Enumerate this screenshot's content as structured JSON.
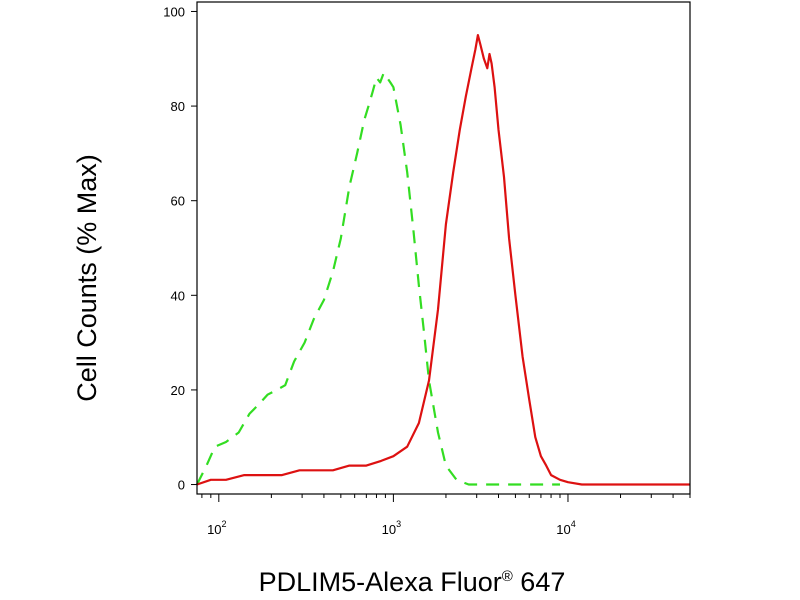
{
  "chart_data": {
    "type": "line",
    "title": "",
    "xlabel": "PDLIM5-Alexa Fluor",
    "xlabel_mark": "®",
    "xlabel_suffix": " 647",
    "ylabel": "Cell Counts (% Max)",
    "x_scale": "log",
    "xlim": [
      75,
      50000
    ],
    "ylim": [
      -2,
      102
    ],
    "grid": false,
    "y_ticks": [
      {
        "value": 0,
        "label": "0"
      },
      {
        "value": 20,
        "label": "20"
      },
      {
        "value": 40,
        "label": "40"
      },
      {
        "value": 60,
        "label": "60"
      },
      {
        "value": 80,
        "label": "80"
      },
      {
        "value": 100,
        "label": "100"
      }
    ],
    "x_ticks": [
      {
        "value": 100,
        "base": "10",
        "exp": "2"
      },
      {
        "value": 1000,
        "base": "10",
        "exp": "3"
      },
      {
        "value": 10000,
        "base": "10",
        "exp": "4"
      }
    ],
    "series": [
      {
        "color": "#33dd22",
        "line_style": "dashed",
        "x": [
          75,
          85,
          95,
          110,
          130,
          150,
          170,
          190,
          215,
          240,
          270,
          310,
          350,
          400,
          450,
          500,
          560,
          620,
          680,
          720,
          760,
          800,
          840,
          880,
          920,
          960,
          1000,
          1100,
          1200,
          1300,
          1400,
          1500,
          1600,
          1800,
          2000,
          2300,
          2700,
          3200,
          3800,
          4500,
          5500,
          7000,
          9000
        ],
        "values": [
          0,
          4,
          8,
          9,
          11,
          15,
          17,
          19,
          20,
          21,
          26,
          30,
          35,
          39,
          45,
          52,
          63,
          70,
          77,
          80,
          83,
          86,
          85,
          87,
          86,
          85,
          84,
          76,
          66,
          54,
          42,
          32,
          22,
          11,
          4,
          1,
          0,
          0,
          0,
          0,
          0,
          0,
          0
        ]
      },
      {
        "color": "#dd1111",
        "line_style": "solid",
        "x": [
          75,
          90,
          110,
          140,
          180,
          230,
          290,
          360,
          450,
          560,
          700,
          850,
          1000,
          1200,
          1400,
          1600,
          1800,
          2000,
          2200,
          2400,
          2600,
          2800,
          2950,
          3050,
          3150,
          3300,
          3450,
          3550,
          3650,
          3800,
          4000,
          4300,
          4600,
          5000,
          5500,
          6000,
          6500,
          7000,
          7500,
          8000,
          9000,
          10000,
          12000,
          15000,
          20000,
          30000,
          50000
        ],
        "values": [
          0,
          1,
          1,
          2,
          2,
          2,
          3,
          3,
          3,
          4,
          4,
          5,
          6,
          8,
          13,
          22,
          37,
          55,
          66,
          75,
          82,
          88,
          92,
          95,
          93,
          90,
          88,
          91,
          89,
          84,
          75,
          65,
          52,
          40,
          27,
          18,
          10,
          6,
          4,
          2,
          1,
          0.5,
          0,
          0,
          0,
          0,
          0
        ]
      }
    ]
  }
}
